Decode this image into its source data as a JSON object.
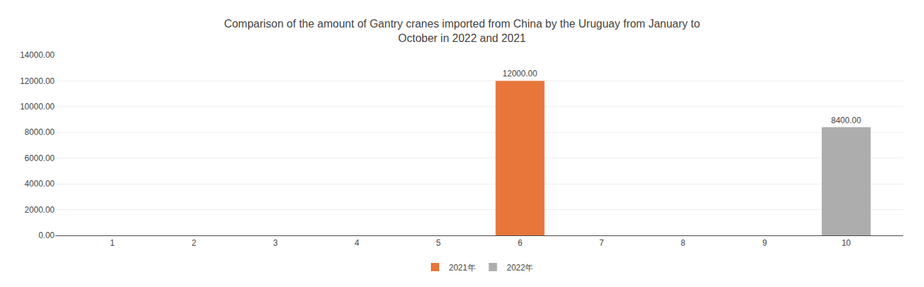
{
  "chart_data": {
    "type": "bar",
    "title": "Comparison of the amount of Gantry cranes imported from China by the Uruguay from January to\nOctober in 2022 and 2021",
    "x": [
      1,
      2,
      3,
      4,
      5,
      6,
      7,
      8,
      9,
      10
    ],
    "series": [
      {
        "name": "2021年",
        "color": "#E8763A",
        "values": [
          0,
          0,
          0,
          0,
          0,
          12000,
          0,
          0,
          0,
          0
        ],
        "value_labels": [
          null,
          null,
          null,
          null,
          null,
          "12000.00",
          null,
          null,
          null,
          null
        ]
      },
      {
        "name": "2022年",
        "color": "#ADADAD",
        "values": [
          0,
          0,
          0,
          0,
          0,
          0,
          0,
          0,
          0,
          8400
        ],
        "value_labels": [
          null,
          null,
          null,
          null,
          null,
          null,
          null,
          null,
          null,
          "8400.00"
        ]
      }
    ],
    "xlim": [
      0.3,
      10.7
    ],
    "xticks": [
      1,
      2,
      3,
      4,
      5,
      6,
      7,
      8,
      9,
      10
    ],
    "ylim": [
      0,
      14000
    ],
    "yticks": [
      {
        "value": 0,
        "label": "0.00"
      },
      {
        "value": 2000,
        "label": "2000.00"
      },
      {
        "value": 4000,
        "label": "4000.00"
      },
      {
        "value": 6000,
        "label": "6000.00"
      },
      {
        "value": 8000,
        "label": "8000.00"
      },
      {
        "value": 10000,
        "label": "10000.00"
      },
      {
        "value": 12000,
        "label": "12000.00"
      },
      {
        "value": 14000,
        "label": "14000.00"
      }
    ],
    "grid": true,
    "legend": "bottom",
    "data_labels": true
  }
}
